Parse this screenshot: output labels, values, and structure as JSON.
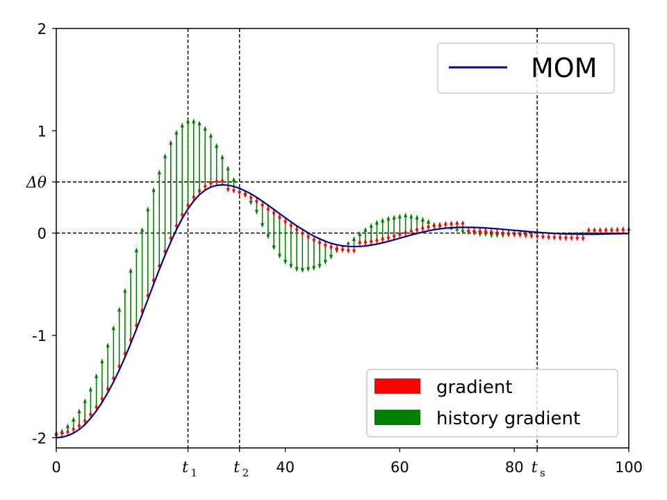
{
  "chart_data": {
    "type": "line",
    "title": "",
    "xlabel": "",
    "ylabel": "",
    "xlim": [
      0,
      100
    ],
    "ylim": [
      -2.1,
      2
    ],
    "grid": false,
    "x_ticks": [
      {
        "value": 0,
        "label": "0"
      },
      {
        "value": 40,
        "label": "40"
      },
      {
        "value": 60,
        "label": "60"
      },
      {
        "value": 80,
        "label": "80"
      },
      {
        "value": 100,
        "label": "100"
      }
    ],
    "x_math_ticks": [
      {
        "value": 23,
        "symbol": "t",
        "sub": "1"
      },
      {
        "value": 32,
        "symbol": "t",
        "sub": "2"
      },
      {
        "value": 84,
        "symbol": "t",
        "sub": "s"
      }
    ],
    "y_ticks": [
      {
        "value": 2,
        "label": "2"
      },
      {
        "value": 1,
        "label": "1"
      },
      {
        "value": 0,
        "label": "0"
      },
      {
        "value": -1,
        "label": "-1"
      },
      {
        "value": -2,
        "label": "-2"
      }
    ],
    "y_math_tick": {
      "value": 0.5,
      "label": "Δθ"
    },
    "reference_lines": {
      "vertical": [
        23,
        32,
        84
      ],
      "horizontal": [
        0,
        0.5
      ]
    },
    "series": [
      {
        "name": "MOM",
        "color": "#00007f",
        "x": [
          0,
          1,
          2,
          3,
          4,
          5,
          6,
          7,
          8,
          9,
          10,
          11,
          12,
          13,
          14,
          15,
          16,
          17,
          18,
          19,
          20,
          21,
          22,
          23,
          24,
          25,
          26,
          27,
          28,
          29,
          30,
          31,
          32,
          33,
          34,
          35,
          36,
          37,
          38,
          39,
          40,
          41,
          42,
          43,
          44,
          45,
          46,
          47,
          48,
          49,
          50,
          51,
          52,
          53,
          54,
          55,
          56,
          57,
          58,
          59,
          60,
          61,
          62,
          63,
          64,
          65,
          66,
          67,
          68,
          69,
          70,
          71,
          72,
          73,
          74,
          75,
          76,
          77,
          78,
          79,
          80,
          81,
          82,
          83,
          84,
          85,
          86,
          87,
          88,
          89,
          90,
          91,
          92,
          93,
          94,
          95,
          96,
          97,
          98,
          99,
          100
        ],
        "y": [
          -2,
          -1.995,
          -1.98,
          -1.955,
          -1.92,
          -1.872,
          -1.81,
          -1.738,
          -1.655,
          -1.56,
          -1.455,
          -1.34,
          -1.214,
          -1.08,
          -0.94,
          -0.795,
          -0.648,
          -0.5,
          -0.356,
          -0.216,
          -0.086,
          0.035,
          0.143,
          0.236,
          0.314,
          0.375,
          0.42,
          0.45,
          0.466,
          0.472,
          0.468,
          0.456,
          0.437,
          0.412,
          0.383,
          0.349,
          0.312,
          0.272,
          0.232,
          0.19,
          0.15,
          0.11,
          0.071,
          0.036,
          0.002,
          -0.03,
          -0.056,
          -0.08,
          -0.1,
          -0.114,
          -0.124,
          -0.13,
          -0.132,
          -0.131,
          -0.126,
          -0.118,
          -0.108,
          -0.095,
          -0.081,
          -0.066,
          -0.05,
          -0.034,
          -0.018,
          -0.004,
          0.01,
          0.022,
          0.033,
          0.041,
          0.048,
          0.052,
          0.055,
          0.056,
          0.056,
          0.055,
          0.053,
          0.05,
          0.046,
          0.042,
          0.037,
          0.032,
          0.027,
          0.022,
          0.017,
          0.012,
          0.008,
          0.004,
          0,
          -0.003,
          -0.006,
          -0.008,
          -0.009,
          -0.01,
          -0.011,
          -0.011,
          -0.011,
          -0.01,
          -0.009,
          -0.008,
          -0.007,
          -0.005,
          -0.004
        ]
      }
    ],
    "gradient_arrows": {
      "name": "gradient",
      "color": "#ff0000",
      "x": [
        0,
        1,
        2,
        3,
        4,
        5,
        6,
        7,
        8,
        9,
        10,
        11,
        12,
        13,
        14,
        15,
        16,
        17,
        18,
        19,
        20,
        21,
        22,
        23,
        24,
        25,
        26,
        27,
        28,
        29,
        30,
        31,
        32,
        33,
        34,
        35,
        36,
        37,
        38,
        39,
        40,
        41,
        42,
        43,
        44,
        45,
        46,
        47,
        48,
        49,
        50,
        51,
        52,
        53,
        54,
        55,
        56,
        57,
        58,
        59,
        60,
        61,
        62,
        63,
        64,
        65,
        66,
        67,
        68,
        69,
        70,
        71,
        72,
        73,
        74,
        75,
        76,
        77,
        78,
        79,
        80,
        81,
        82,
        83,
        84,
        85,
        86,
        87,
        88,
        89,
        90,
        91,
        92,
        93,
        94,
        95,
        96,
        97,
        98,
        99,
        100
      ],
      "y_start": [
        -2,
        -1.995,
        -1.98,
        -1.955,
        -1.92,
        -1.872,
        -1.81,
        -1.738,
        -1.655,
        -1.56,
        -1.455,
        -1.34,
        -1.214,
        -1.08,
        -0.94,
        -0.795,
        -0.648,
        -0.5,
        -0.356,
        -0.216,
        -0.086,
        0.035,
        0.143,
        0.236,
        0.314,
        0.375,
        0.42,
        0.45,
        0.466,
        0.472,
        0.468,
        0.456,
        0.437,
        0.412,
        0.383,
        0.349,
        0.312,
        0.272,
        0.232,
        0.19,
        0.15,
        0.11,
        0.071,
        0.036,
        0.002,
        -0.03,
        -0.056,
        -0.08,
        -0.1,
        -0.114,
        -0.124,
        -0.13,
        -0.132,
        -0.131,
        -0.126,
        -0.118,
        -0.108,
        -0.095,
        -0.081,
        -0.066,
        -0.05,
        -0.034,
        -0.018,
        -0.004,
        0.01,
        0.022,
        0.033,
        0.041,
        0.048,
        0.052,
        0.055,
        0.056,
        0.056,
        0.055,
        0.053,
        0.05,
        0.046,
        0.042,
        0.037,
        0.032,
        0.027,
        0.022,
        0.017,
        0.012,
        0.008,
        0.004,
        0,
        -0.003,
        -0.006,
        -0.008,
        -0.009,
        -0.01,
        -0.011,
        -0.011,
        -0.011,
        -0.01,
        -0.009,
        -0.008,
        -0.007,
        -0.005,
        -0.004
      ],
      "gain": 0.5
    },
    "history_arrows": {
      "name": "history gradient",
      "color": "#008000",
      "x": [
        0,
        1,
        2,
        3,
        4,
        5,
        6,
        7,
        8,
        9,
        10,
        11,
        12,
        13,
        14,
        15,
        16,
        17,
        18,
        19,
        20,
        21,
        22,
        23,
        24,
        25,
        26,
        27,
        28,
        29,
        30,
        31,
        32,
        33,
        34,
        35,
        36,
        37,
        38,
        39,
        40,
        41,
        42,
        43,
        44,
        45,
        46,
        47,
        48,
        49,
        50,
        51,
        52,
        53,
        54,
        55,
        56,
        57,
        58,
        59,
        60,
        61,
        62,
        63,
        64,
        65,
        66,
        67,
        68,
        69,
        70,
        71,
        72,
        73,
        74,
        75,
        76,
        77,
        78,
        79,
        80,
        81,
        82,
        83,
        84,
        85,
        86,
        87,
        88,
        89,
        90,
        91,
        92,
        93,
        94,
        95,
        96,
        97,
        98,
        99,
        100
      ],
      "y_start": [
        -2,
        -1.995,
        -1.98,
        -1.955,
        -1.92,
        -1.872,
        -1.81,
        -1.738,
        -1.655,
        -1.56,
        -1.455,
        -1.34,
        -1.214,
        -1.08,
        -0.94,
        -0.795,
        -0.648,
        -0.5,
        -0.356,
        -0.216,
        -0.086,
        0.035,
        0.143,
        0.236,
        0.314,
        0.375,
        0.42,
        0.45,
        0.466,
        0.472,
        0.468,
        0.456,
        0.437,
        0.412,
        0.383,
        0.349,
        0.312,
        0.272,
        0.232,
        0.19,
        0.15,
        0.11,
        0.071,
        0.036,
        0.002,
        -0.03,
        -0.056,
        -0.08,
        -0.1,
        -0.114,
        -0.124,
        -0.13,
        -0.132,
        -0.131,
        -0.126,
        -0.118,
        -0.108,
        -0.095,
        -0.081,
        -0.066,
        -0.05,
        -0.034,
        -0.018,
        -0.004,
        0.01,
        0.022,
        0.033,
        0.041,
        0.048,
        0.052,
        0.055,
        0.056,
        0.056,
        0.055,
        0.053,
        0.05,
        0.046,
        0.042,
        0.037,
        0.032,
        0.027,
        0.022,
        0.017,
        0.012,
        0.008,
        0.004,
        0,
        -0.003,
        -0.006,
        -0.008,
        -0.009,
        -0.01,
        -0.011,
        -0.011,
        -0.011,
        -0.01,
        -0.009,
        -0.008,
        -0.007,
        -0.005,
        -0.004
      ],
      "y_end": [
        -1.95,
        -1.91,
        -1.86,
        -1.795,
        -1.715,
        -1.615,
        -1.5,
        -1.37,
        -1.225,
        -1.07,
        -0.9,
        -0.72,
        -0.535,
        -0.34,
        -0.14,
        0.06,
        0.26,
        0.45,
        0.62,
        0.78,
        0.91,
        1.01,
        1.08,
        1.12,
        1.12,
        1.1,
        1.05,
        0.98,
        0.88,
        0.77,
        0.66,
        0.55,
        0.45,
        0.36,
        0.27,
        0.18,
        0.05,
        -0.06,
        -0.17,
        -0.25,
        -0.31,
        -0.35,
        -0.38,
        -0.39,
        -0.38,
        -0.37,
        -0.35,
        -0.31,
        -0.26,
        -0.2,
        -0.14,
        -0.08,
        -0.03,
        0.02,
        0.06,
        0.1,
        0.13,
        0.15,
        0.17,
        0.18,
        0.19,
        0.2,
        0.19,
        0.18,
        0.16,
        0.14,
        0.11,
        0.09,
        0.06,
        0.03,
        0.01,
        -0.01,
        -0.02,
        -0.03,
        -0.04,
        -0.04,
        -0.05,
        -0.05,
        -0.05,
        -0.045,
        -0.04,
        -0.035,
        -0.03,
        -0.02,
        -0.015,
        -0.01,
        -0.005,
        0,
        0.005,
        0.008,
        0.01,
        0.012,
        0.015,
        0.017,
        0.018,
        0.018,
        0.017,
        0.015,
        0.012,
        0.01,
        0.008
      ]
    },
    "legends": [
      {
        "placement": "top-right",
        "entries": [
          {
            "label": "MOM",
            "kind": "line",
            "color": "#00007f"
          }
        ]
      },
      {
        "placement": "lower-right",
        "entries": [
          {
            "label": "gradient",
            "kind": "patch",
            "color": "#ff0000"
          },
          {
            "label": "history gradient",
            "kind": "patch",
            "color": "#008000"
          }
        ]
      }
    ]
  }
}
